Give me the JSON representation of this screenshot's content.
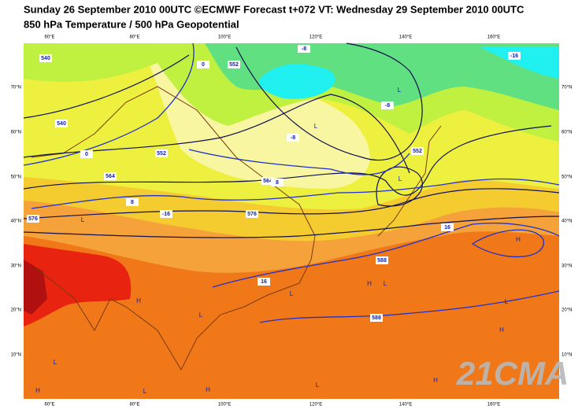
{
  "header": {
    "title": "Sunday 26 September 2010 00UTC ©ECMWF Forecast t+072 VT: Wednesday 29 September 2010 00UTC",
    "subtitle": "850 hPa Temperature / 500 hPa Geopotential"
  },
  "lon_labels": [
    "60°E",
    "80°E",
    "100°E",
    "120°E",
    "140°E",
    "160°E"
  ],
  "lat_labels": [
    "70°N",
    "60°N",
    "50°N",
    "40°N",
    "30°N",
    "20°N",
    "10°N"
  ],
  "contour_labels": [
    "540",
    "540",
    "552",
    "552",
    "564",
    "564",
    "576",
    "576",
    "588",
    "588",
    "0",
    "0",
    "-8",
    "-8",
    "8",
    "8",
    "16",
    "16",
    "-16",
    "-16",
    "-8",
    "552"
  ],
  "pressure_centers": [
    "L",
    "L",
    "L",
    "L",
    "H",
    "H",
    "L",
    "H",
    "L",
    "L",
    "H",
    "L",
    "H",
    "L",
    "H",
    "L",
    "L",
    "H"
  ],
  "watermark": "21CMA"
}
